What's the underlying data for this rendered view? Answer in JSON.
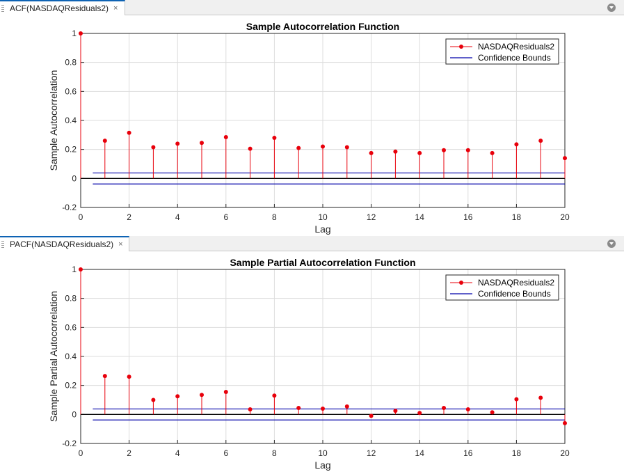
{
  "tabs": [
    {
      "label": "ACF(NASDAQResiduals2)",
      "close": "×"
    },
    {
      "label": "PACF(NASDAQResiduals2)",
      "close": "×"
    }
  ],
  "colors": {
    "stem": "#e8000b",
    "bounds": "#0000aa",
    "zero": "#000000",
    "grid": "#dcdcdc"
  },
  "chart_data": [
    {
      "type": "stem",
      "title": "Sample Autocorrelation Function",
      "xlabel": "Lag",
      "ylabel": "Sample Autocorrelation",
      "xlim": [
        0,
        20
      ],
      "ylim": [
        -0.2,
        1
      ],
      "xticks": [
        0,
        2,
        4,
        6,
        8,
        10,
        12,
        14,
        16,
        18,
        20
      ],
      "yticks": [
        -0.2,
        0,
        0.2,
        0.4,
        0.6,
        0.8,
        1
      ],
      "grid": true,
      "legend_position": "top-right",
      "legend": [
        "NASDAQResiduals2",
        "Confidence Bounds"
      ],
      "lags": [
        0,
        1,
        2,
        3,
        4,
        5,
        6,
        7,
        8,
        9,
        10,
        11,
        12,
        13,
        14,
        15,
        16,
        17,
        18,
        19,
        20
      ],
      "values": [
        1,
        0.26,
        0.315,
        0.215,
        0.24,
        0.245,
        0.285,
        0.205,
        0.28,
        0.21,
        0.22,
        0.215,
        0.175,
        0.185,
        0.175,
        0.195,
        0.195,
        0.175,
        0.235,
        0.26,
        0.14
      ],
      "confidence_bounds": [
        0.038,
        -0.038
      ]
    },
    {
      "type": "stem",
      "title": "Sample Partial Autocorrelation Function",
      "xlabel": "Lag",
      "ylabel": "Sample Partial Autocorrelation",
      "xlim": [
        0,
        20
      ],
      "ylim": [
        -0.2,
        1
      ],
      "xticks": [
        0,
        2,
        4,
        6,
        8,
        10,
        12,
        14,
        16,
        18,
        20
      ],
      "yticks": [
        -0.2,
        0,
        0.2,
        0.4,
        0.6,
        0.8,
        1
      ],
      "grid": true,
      "legend_position": "top-right",
      "legend": [
        "NASDAQResiduals2",
        "Confidence Bounds"
      ],
      "lags": [
        0,
        1,
        2,
        3,
        4,
        5,
        6,
        7,
        8,
        9,
        10,
        11,
        12,
        13,
        14,
        15,
        16,
        17,
        18,
        19,
        20
      ],
      "values": [
        1,
        0.265,
        0.26,
        0.1,
        0.125,
        0.135,
        0.155,
        0.035,
        0.13,
        0.045,
        0.04,
        0.055,
        -0.01,
        0.025,
        0.01,
        0.045,
        0.035,
        0.015,
        0.105,
        0.115,
        -0.06
      ],
      "confidence_bounds": [
        0.038,
        -0.038
      ]
    }
  ]
}
